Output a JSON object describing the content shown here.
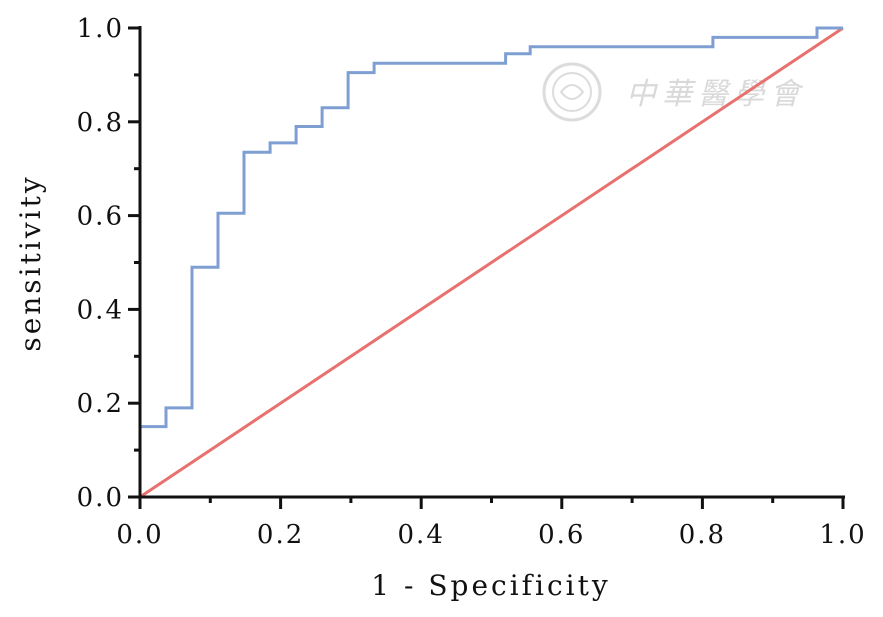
{
  "chart_data": {
    "type": "line",
    "xlabel": "1 - Specificity",
    "ylabel": "sensitivity",
    "xlim": [
      0,
      1
    ],
    "ylim": [
      0,
      1
    ],
    "x_ticks": [
      "0.0",
      "0.2",
      "0.4",
      "0.6",
      "0.8",
      "1.0"
    ],
    "y_ticks": [
      "0.0",
      "0.2",
      "0.4",
      "0.6",
      "0.8",
      "1.0"
    ],
    "grid": false,
    "legend": "none",
    "series": [
      {
        "color": "#7f9fd3",
        "step": true,
        "points": [
          [
            0,
            0
          ],
          [
            0,
            0.15
          ],
          [
            0.037,
            0.15
          ],
          [
            0.037,
            0.19
          ],
          [
            0.074,
            0.19
          ],
          [
            0.074,
            0.49
          ],
          [
            0.111,
            0.49
          ],
          [
            0.111,
            0.605
          ],
          [
            0.148,
            0.605
          ],
          [
            0.148,
            0.735
          ],
          [
            0.185,
            0.735
          ],
          [
            0.185,
            0.755
          ],
          [
            0.222,
            0.755
          ],
          [
            0.222,
            0.79
          ],
          [
            0.259,
            0.79
          ],
          [
            0.259,
            0.83
          ],
          [
            0.296,
            0.83
          ],
          [
            0.296,
            0.905
          ],
          [
            0.333,
            0.905
          ],
          [
            0.333,
            0.925
          ],
          [
            0.52,
            0.925
          ],
          [
            0.52,
            0.945
          ],
          [
            0.555,
            0.945
          ],
          [
            0.555,
            0.96
          ],
          [
            0.815,
            0.96
          ],
          [
            0.815,
            0.98
          ],
          [
            0.963,
            0.98
          ],
          [
            0.963,
            1.0
          ],
          [
            1.0,
            1.0
          ]
        ]
      },
      {
        "color": "#e8706e",
        "step": false,
        "points": [
          [
            0,
            0
          ],
          [
            1,
            1
          ]
        ]
      }
    ]
  },
  "watermark": {
    "text": "中華醫學會",
    "icon": "seal-icon"
  }
}
